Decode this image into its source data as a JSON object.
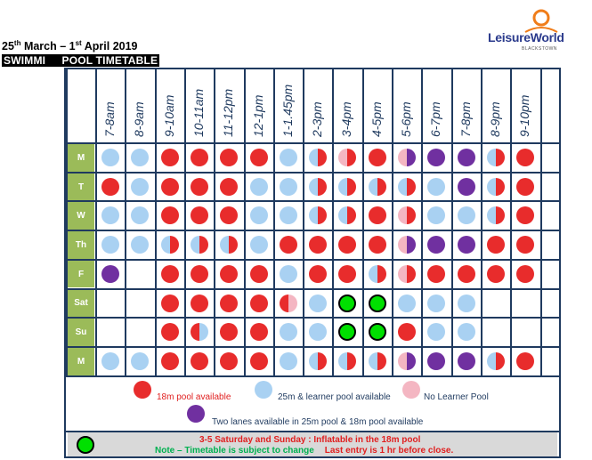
{
  "header": {
    "title_day1": "25",
    "title_sup1": "th",
    "title_mid": " March – 1",
    "title_sup2": "st",
    "title_end": " April 2019",
    "subtitle": "SWIMMI   POOL TIMETABLE"
  },
  "logo": {
    "word": "LeisureWorld",
    "sub": "BLACKSTOWN",
    "accent": "#f07d1a",
    "brand": "#2a3a8c"
  },
  "colors": {
    "red": "#e82c2c",
    "blue": "#a9d1f2",
    "pink": "#f4b6c2",
    "purple": "#7030a0",
    "green": "#00e000",
    "day_bg": "#9bbb59",
    "grid": "#1f3a5f"
  },
  "columns": [
    "7-8am",
    "8-9am",
    "9-10am",
    "10-11am",
    "11-12pm",
    "12-1pm",
    "1-1.45pm",
    "2-3pm",
    "3-4pm",
    "4-5pm",
    "5-6pm",
    "6-7pm",
    "7-8pm",
    "8-9pm",
    "9-10pm"
  ],
  "rows": [
    {
      "day": "M",
      "cells": [
        "B",
        "B",
        "R",
        "R",
        "R",
        "R",
        "B",
        "BR",
        "PR",
        "R",
        "PU",
        "U",
        "U",
        "BR",
        "R"
      ]
    },
    {
      "day": "T",
      "cells": [
        "R",
        "B",
        "R",
        "R",
        "R",
        "B",
        "B",
        "BR",
        "BR",
        "BR",
        "BR",
        "B",
        "U",
        "BR",
        "R"
      ]
    },
    {
      "day": "W",
      "cells": [
        "B",
        "B",
        "R",
        "R",
        "R",
        "B",
        "B",
        "BR",
        "BR",
        "R",
        "PR",
        "B",
        "B",
        "BR",
        "R"
      ]
    },
    {
      "day": "Th",
      "cells": [
        "B",
        "B",
        "BR",
        "BR",
        "BR",
        "B",
        "R",
        "R",
        "R",
        "R",
        "PU",
        "U",
        "U",
        "R",
        "R"
      ]
    },
    {
      "day": "F",
      "cells": [
        "U",
        "",
        "R",
        "R",
        "R",
        "R",
        "B",
        "R",
        "R",
        "BR",
        "PR",
        "R",
        "R",
        "R",
        "R"
      ]
    },
    {
      "day": "Sat",
      "cells": [
        "",
        "",
        "R",
        "R",
        "R",
        "R",
        "RP",
        "B",
        "G",
        "G",
        "B",
        "B",
        "B",
        "",
        ""
      ]
    },
    {
      "day": "Su",
      "cells": [
        "",
        "",
        "R",
        "RB",
        "R",
        "R",
        "B",
        "B",
        "G",
        "G",
        "R",
        "B",
        "B",
        "",
        ""
      ]
    },
    {
      "day": "M",
      "cells": [
        "B",
        "B",
        "R",
        "R",
        "R",
        "R",
        "B",
        "BR",
        "BR",
        "BR",
        "PU",
        "U",
        "U",
        "BR",
        "R"
      ]
    }
  ],
  "legend": {
    "red": "18m pool available",
    "blue": "25m & learner pool available",
    "pink": "No Learner Pool",
    "purple": "Two lanes available in 25m pool & 18m pool available"
  },
  "notes": {
    "line1": "3-5 Saturday and Sunday : Inflatable in the 18m pool",
    "line2a": "Note – Timetable is subject to change",
    "line2b": "Last entry is 1 hr before close."
  }
}
